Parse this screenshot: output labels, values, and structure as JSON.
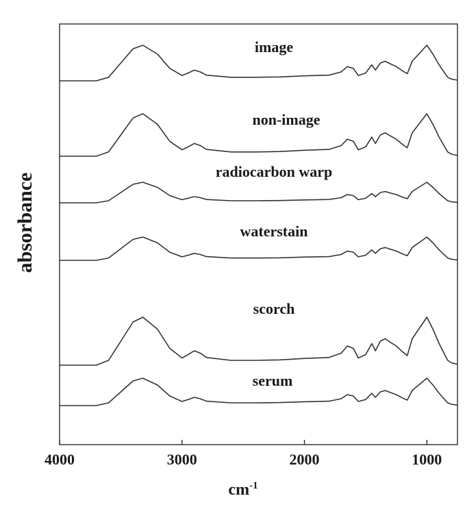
{
  "chart_data": {
    "type": "line",
    "xlabel": "cm",
    "xlabel_superscript": "-1",
    "ylabel": "absorbance",
    "x_reversed": true,
    "xlim": [
      4000,
      750
    ],
    "xticks": [
      4000,
      3000,
      2000,
      1000
    ],
    "y_ticks_shown": false,
    "grid": false,
    "legend": "none; series labelled directly above each trace",
    "line_color": "#333333",
    "series": [
      {
        "name": "image",
        "x": [
          4000,
          3700,
          3600,
          3500,
          3400,
          3320,
          3200,
          3100,
          3000,
          2950,
          2900,
          2850,
          2800,
          2600,
          2400,
          2200,
          2000,
          1800,
          1700,
          1650,
          1600,
          1560,
          1500,
          1450,
          1420,
          1380,
          1340,
          1300,
          1250,
          1200,
          1160,
          1120,
          1080,
          1040,
          1000,
          950,
          900,
          870,
          830,
          800,
          770,
          750
        ],
        "y": [
          0.0,
          0.0,
          0.1,
          0.5,
          0.9,
          1.0,
          0.75,
          0.35,
          0.15,
          0.22,
          0.3,
          0.25,
          0.16,
          0.1,
          0.1,
          0.11,
          0.14,
          0.16,
          0.25,
          0.4,
          0.35,
          0.15,
          0.22,
          0.45,
          0.3,
          0.5,
          0.55,
          0.48,
          0.4,
          0.28,
          0.2,
          0.55,
          0.7,
          0.85,
          1.0,
          0.75,
          0.45,
          0.3,
          0.1,
          0.05,
          0.03,
          0.02
        ]
      },
      {
        "name": "non-image",
        "x": [
          4000,
          3700,
          3600,
          3500,
          3400,
          3320,
          3200,
          3100,
          3000,
          2950,
          2900,
          2850,
          2800,
          2600,
          2400,
          2200,
          2000,
          1800,
          1700,
          1650,
          1600,
          1560,
          1500,
          1450,
          1420,
          1380,
          1340,
          1300,
          1250,
          1200,
          1160,
          1120,
          1080,
          1040,
          1000,
          950,
          900,
          870,
          830,
          800,
          770,
          750
        ],
        "y": [
          0.0,
          0.0,
          0.1,
          0.5,
          0.9,
          1.0,
          0.75,
          0.35,
          0.15,
          0.22,
          0.3,
          0.25,
          0.16,
          0.1,
          0.1,
          0.11,
          0.14,
          0.16,
          0.25,
          0.4,
          0.35,
          0.15,
          0.22,
          0.45,
          0.3,
          0.5,
          0.55,
          0.48,
          0.4,
          0.28,
          0.2,
          0.55,
          0.7,
          0.85,
          1.0,
          0.75,
          0.45,
          0.3,
          0.1,
          0.05,
          0.03,
          0.02
        ]
      },
      {
        "name": "radiocarbon warp",
        "x": [
          4000,
          3700,
          3600,
          3500,
          3400,
          3320,
          3200,
          3100,
          3000,
          2950,
          2900,
          2850,
          2800,
          2600,
          2400,
          2200,
          2000,
          1800,
          1700,
          1650,
          1600,
          1560,
          1500,
          1450,
          1420,
          1380,
          1340,
          1300,
          1250,
          1200,
          1160,
          1120,
          1080,
          1040,
          1000,
          950,
          900,
          870,
          830,
          800,
          770,
          750
        ],
        "y": [
          0.0,
          0.0,
          0.1,
          0.5,
          0.9,
          1.0,
          0.75,
          0.35,
          0.15,
          0.22,
          0.3,
          0.25,
          0.16,
          0.1,
          0.1,
          0.11,
          0.14,
          0.16,
          0.25,
          0.4,
          0.35,
          0.15,
          0.22,
          0.45,
          0.3,
          0.5,
          0.55,
          0.48,
          0.4,
          0.28,
          0.2,
          0.55,
          0.7,
          0.85,
          1.0,
          0.75,
          0.45,
          0.3,
          0.1,
          0.05,
          0.03,
          0.02
        ]
      },
      {
        "name": "waterstain",
        "x": [
          4000,
          3700,
          3600,
          3500,
          3400,
          3320,
          3200,
          3100,
          3000,
          2950,
          2900,
          2850,
          2800,
          2600,
          2400,
          2200,
          2000,
          1800,
          1700,
          1650,
          1600,
          1560,
          1500,
          1450,
          1420,
          1380,
          1340,
          1300,
          1250,
          1200,
          1160,
          1120,
          1080,
          1040,
          1000,
          950,
          900,
          870,
          830,
          800,
          770,
          750
        ],
        "y": [
          0.0,
          0.0,
          0.1,
          0.5,
          0.9,
          1.0,
          0.75,
          0.35,
          0.15,
          0.22,
          0.3,
          0.25,
          0.16,
          0.1,
          0.1,
          0.11,
          0.14,
          0.16,
          0.25,
          0.4,
          0.35,
          0.15,
          0.22,
          0.45,
          0.3,
          0.5,
          0.55,
          0.48,
          0.4,
          0.28,
          0.2,
          0.55,
          0.7,
          0.85,
          1.0,
          0.75,
          0.45,
          0.3,
          0.1,
          0.05,
          0.03,
          0.02
        ]
      },
      {
        "name": "scorch",
        "x": [
          4000,
          3700,
          3600,
          3500,
          3400,
          3320,
          3200,
          3100,
          3000,
          2950,
          2900,
          2850,
          2800,
          2600,
          2400,
          2200,
          2000,
          1800,
          1700,
          1650,
          1600,
          1560,
          1500,
          1450,
          1420,
          1380,
          1340,
          1300,
          1250,
          1200,
          1160,
          1120,
          1080,
          1040,
          1000,
          950,
          900,
          870,
          830,
          800,
          770,
          750
        ],
        "y": [
          0.0,
          0.0,
          0.1,
          0.5,
          0.9,
          1.0,
          0.75,
          0.35,
          0.15,
          0.22,
          0.3,
          0.25,
          0.16,
          0.1,
          0.1,
          0.11,
          0.14,
          0.16,
          0.25,
          0.4,
          0.35,
          0.15,
          0.22,
          0.45,
          0.3,
          0.5,
          0.55,
          0.48,
          0.4,
          0.28,
          0.2,
          0.55,
          0.7,
          0.85,
          1.0,
          0.75,
          0.45,
          0.3,
          0.1,
          0.05,
          0.03,
          0.02
        ]
      },
      {
        "name": "serum",
        "x": [
          4000,
          3700,
          3600,
          3500,
          3400,
          3320,
          3200,
          3100,
          3000,
          2950,
          2900,
          2850,
          2800,
          2600,
          2400,
          2200,
          2000,
          1800,
          1700,
          1650,
          1600,
          1560,
          1500,
          1450,
          1420,
          1380,
          1340,
          1300,
          1250,
          1200,
          1160,
          1120,
          1080,
          1040,
          1000,
          950,
          900,
          870,
          830,
          800,
          770,
          750
        ],
        "y": [
          0.0,
          0.0,
          0.1,
          0.5,
          0.9,
          1.0,
          0.75,
          0.35,
          0.15,
          0.22,
          0.3,
          0.25,
          0.16,
          0.1,
          0.1,
          0.11,
          0.14,
          0.16,
          0.25,
          0.4,
          0.35,
          0.15,
          0.22,
          0.45,
          0.3,
          0.5,
          0.55,
          0.48,
          0.4,
          0.28,
          0.2,
          0.55,
          0.7,
          0.85,
          1.0,
          0.75,
          0.45,
          0.3,
          0.1,
          0.05,
          0.03,
          0.02
        ]
      }
    ]
  }
}
